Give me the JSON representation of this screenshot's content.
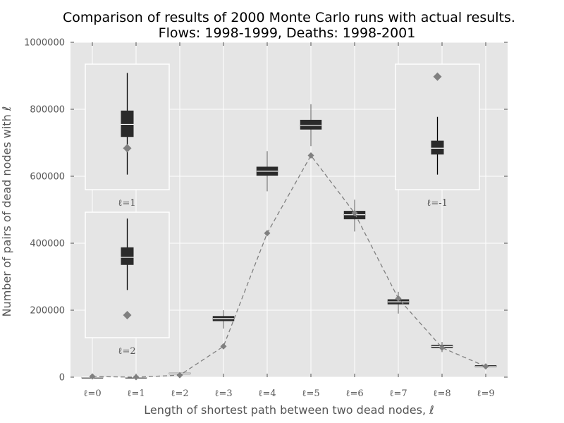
{
  "chart_data": {
    "type": "box",
    "title": "Comparison of results of 2000 Monte Carlo runs with actual results.",
    "subtitle": "Flows: 1998-1999,  Deaths: 1998-2001",
    "xlabel": "Length of shortest path between two dead nodes, ℓ",
    "ylabel": "Number of pairs of dead nodes with ℓ",
    "ylim": [
      0,
      1000000
    ],
    "yticks": [
      "0",
      "200000",
      "400000",
      "600000",
      "800000",
      "1000000"
    ],
    "grid": true,
    "categories": [
      "ℓ=0",
      "ℓ=1",
      "ℓ=2",
      "ℓ=3",
      "ℓ=4",
      "ℓ=5",
      "ℓ=6",
      "ℓ=7",
      "ℓ=8",
      "ℓ=9"
    ],
    "boxes": [
      {
        "min": 0,
        "q1": 0,
        "median": 0,
        "q3": 0,
        "max": 0
      },
      {
        "min": 0,
        "q1": 0,
        "median": 0,
        "q3": 0,
        "max": 0
      },
      {
        "min": 9000,
        "q1": 11000,
        "median": 12000,
        "q3": 13000,
        "max": 15000
      },
      {
        "min": 145000,
        "q1": 168000,
        "median": 175000,
        "q3": 182000,
        "max": 200000
      },
      {
        "min": 555000,
        "q1": 602000,
        "median": 615000,
        "q3": 628000,
        "max": 675000
      },
      {
        "min": 690000,
        "q1": 740000,
        "median": 752000,
        "q3": 768000,
        "max": 815000
      },
      {
        "min": 435000,
        "q1": 472000,
        "median": 485000,
        "q3": 496000,
        "max": 530000
      },
      {
        "min": 190000,
        "q1": 218000,
        "median": 225000,
        "q3": 232000,
        "max": 255000
      },
      {
        "min": 75000,
        "q1": 88000,
        "median": 92000,
        "q3": 96000,
        "max": 105000
      },
      {
        "min": 25000,
        "q1": 30000,
        "median": 32000,
        "q3": 35000,
        "max": 40000
      }
    ],
    "actual": [
      2000,
      0,
      6000,
      92000,
      430000,
      662000,
      490000,
      235000,
      88000,
      32000
    ],
    "insets": [
      {
        "label": "ℓ=1",
        "min": 0.12,
        "q1": 0.42,
        "median": 0.52,
        "q3": 0.63,
        "max": 0.93,
        "actual": 0.33
      },
      {
        "label": "ℓ=2",
        "min": 0.38,
        "q1": 0.58,
        "median": 0.64,
        "q3": 0.72,
        "max": 0.95,
        "actual": 0.18
      },
      {
        "label": "ℓ=-1",
        "min": 0.12,
        "q1": 0.28,
        "median": 0.33,
        "q3": 0.39,
        "max": 0.58,
        "actual": 0.9
      }
    ]
  }
}
